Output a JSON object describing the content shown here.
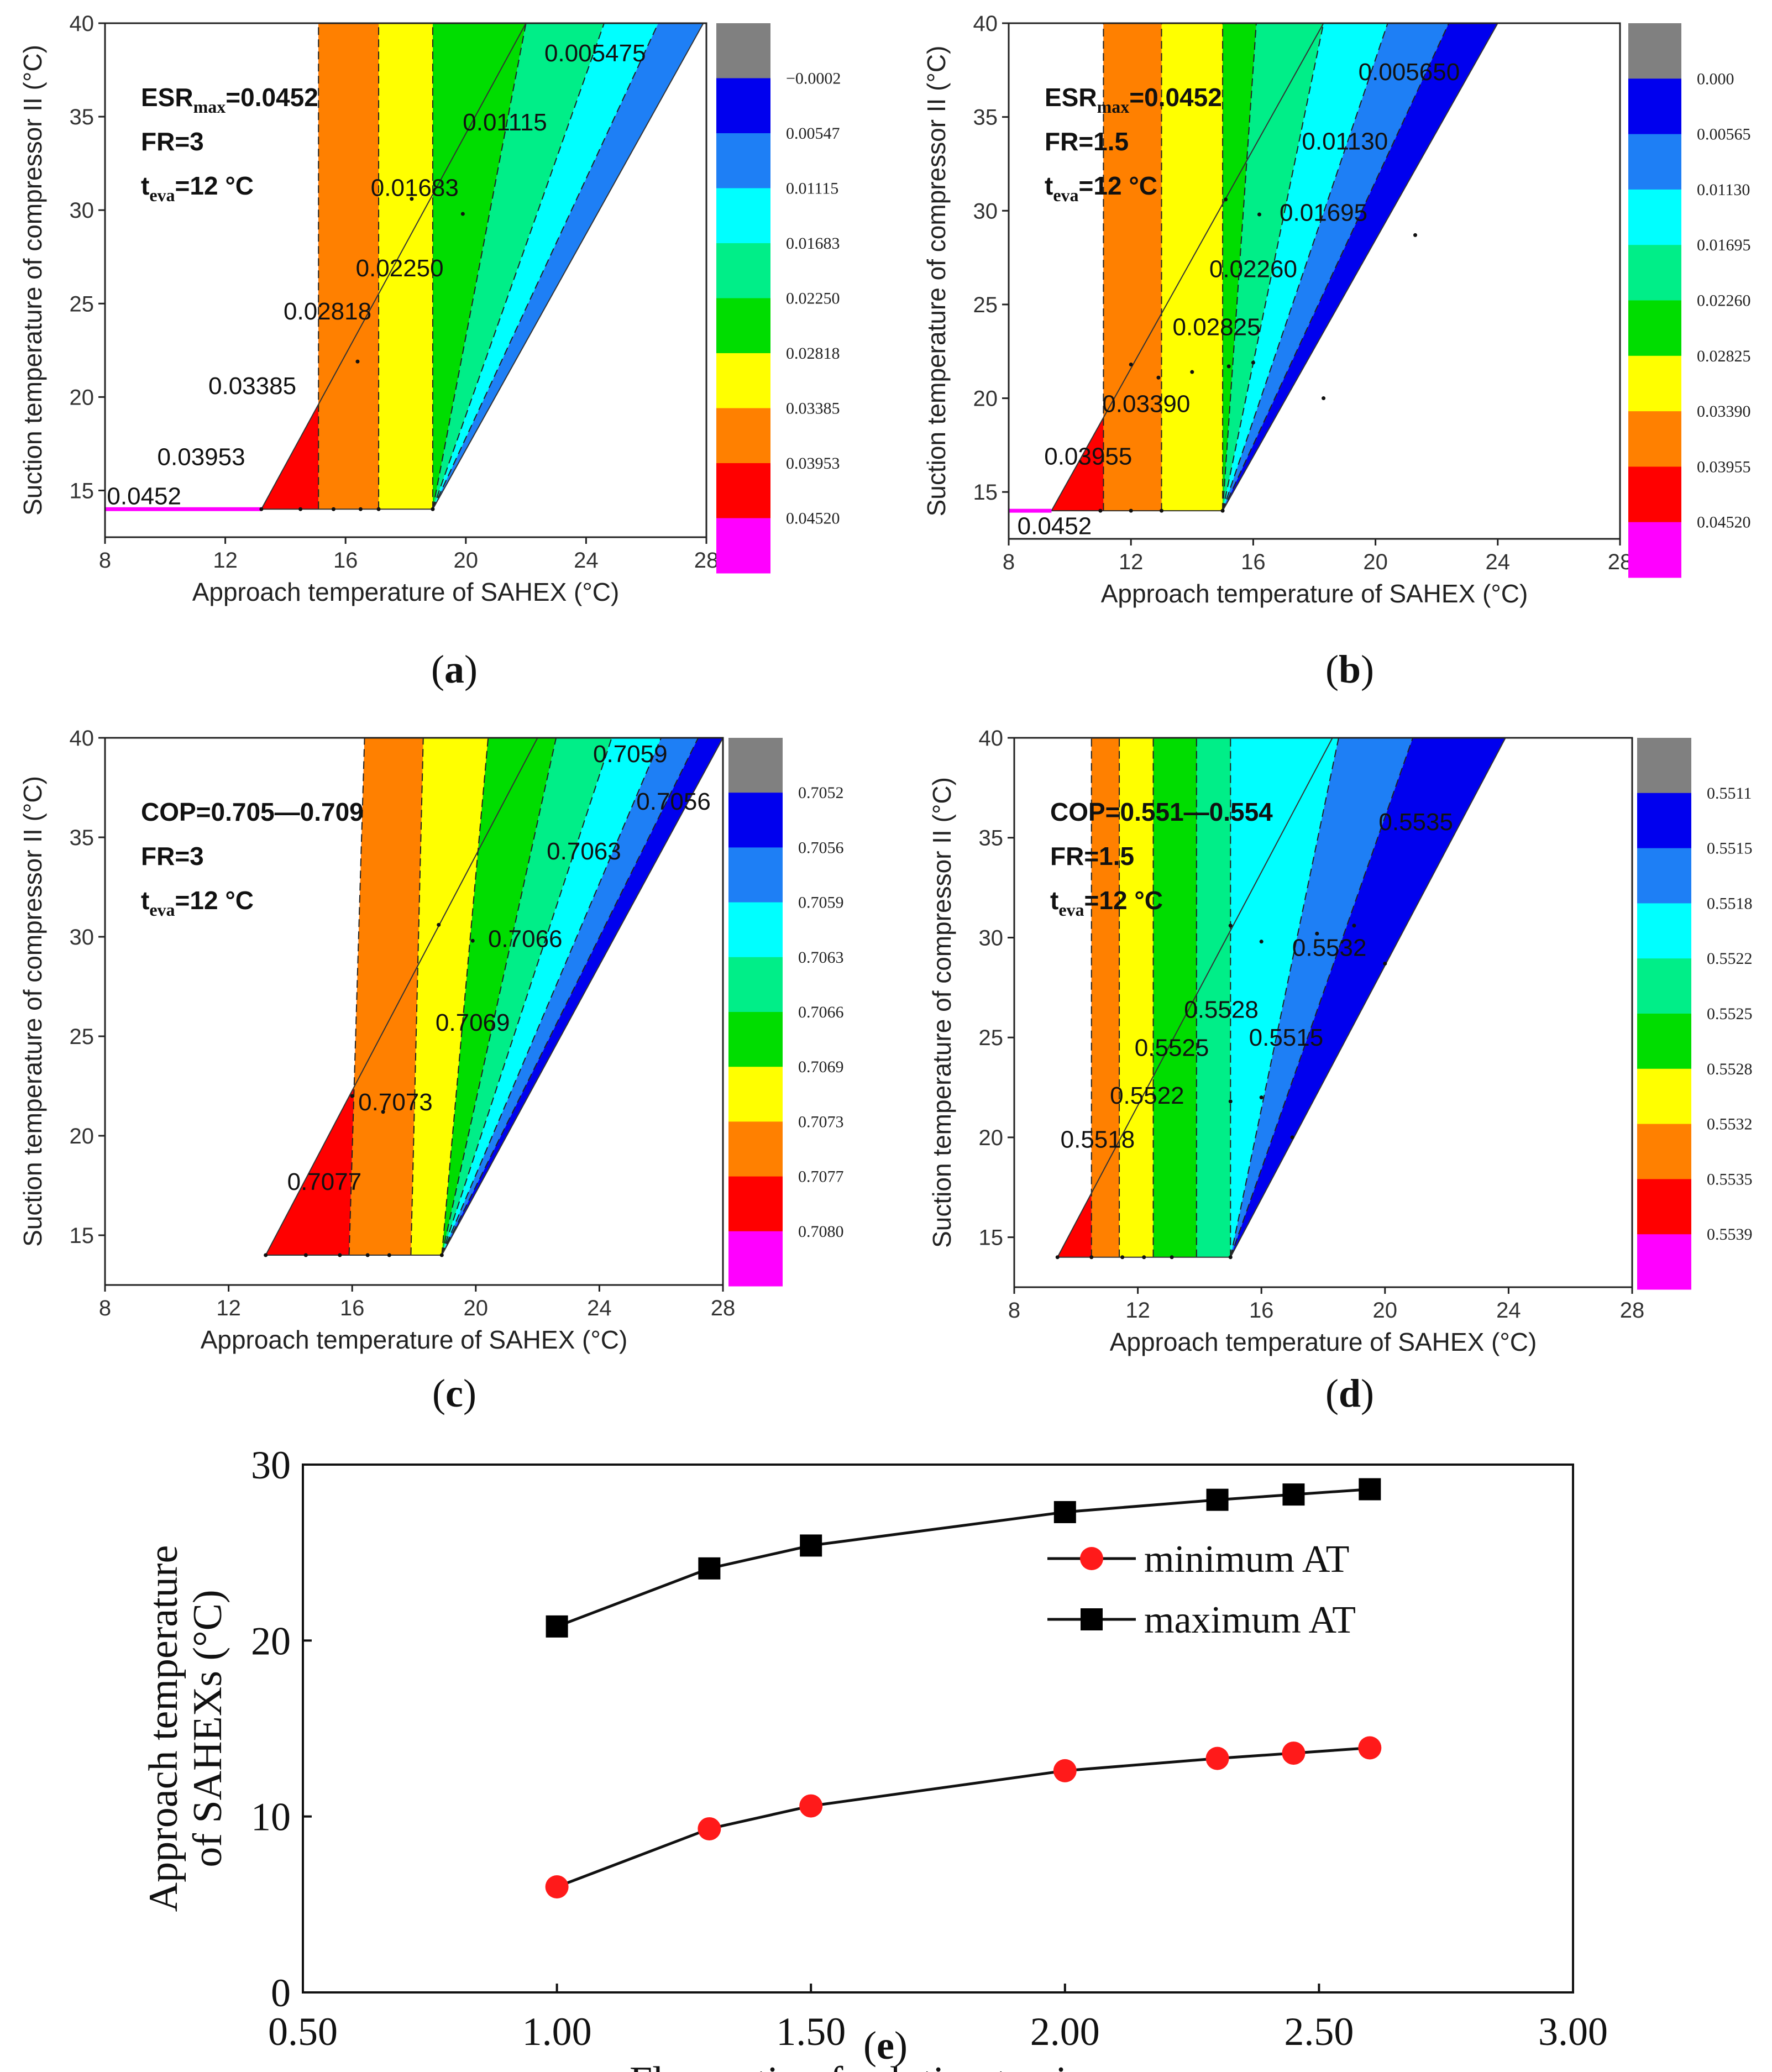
{
  "chart_data": [
    {
      "panel": "a",
      "type": "contour",
      "caption": "(a)",
      "xlabel": "Approach temperature of SAHEX (°C)",
      "ylabel": "Suction temperature of compressor II (°C)",
      "xlim": [
        8,
        28
      ],
      "ylim": [
        12.5,
        40
      ],
      "xticks": [
        8,
        12,
        16,
        20,
        24,
        28
      ],
      "yticks": [
        15,
        20,
        25,
        30,
        35,
        40
      ],
      "xtick_labels": [
        "8",
        "12",
        "16",
        "20",
        "24",
        "28"
      ],
      "ytick_labels": [
        "15",
        "20",
        "25",
        "30",
        "35",
        "40"
      ],
      "info": {
        "line1_main": "ESR",
        "line1_sub": "max",
        "line1_rest": "=0.0452",
        "line2": "FR=3",
        "line3_main": "t",
        "line3_sub": "eva",
        "line3_rest": "=12 °C"
      },
      "region": {
        "bottom": [
          13.2,
          18.9
        ],
        "top": [
          22.0,
          27.9
        ],
        "y_bottom": 14,
        "y_top": 40
      },
      "band_boundaries": [
        {
          "bottom": 15.1,
          "top": 15.1
        },
        {
          "bottom": 17.1,
          "top": 17.1
        },
        {
          "bottom": 18.9,
          "top": 18.9
        },
        {
          "bottom": 18.9,
          "top": 22.0
        },
        {
          "bottom": 18.9,
          "top": 24.6
        },
        {
          "bottom": 18.9,
          "top": 26.4
        }
      ],
      "colorbar_labels": [
        "−0.0002",
        "0.00547",
        "0.01115",
        "0.01683",
        "0.02250",
        "0.02818",
        "0.03385",
        "0.03953",
        "0.04520"
      ],
      "contour_labels": [
        {
          "text": "0.005475",
          "x": 24.3,
          "y": 38.4
        },
        {
          "text": "0.01115",
          "x": 21.3,
          "y": 34.7
        },
        {
          "text": "0.01683",
          "x": 18.3,
          "y": 31.2
        },
        {
          "text": "0.02250",
          "x": 17.8,
          "y": 26.9
        },
        {
          "text": "0.02818",
          "x": 15.4,
          "y": 24.6
        },
        {
          "text": "0.03385",
          "x": 12.9,
          "y": 20.6
        },
        {
          "text": "0.03953",
          "x": 11.2,
          "y": 16.8
        },
        {
          "text": "0.0452",
          "x": 9.3,
          "y": 14.7
        }
      ],
      "pink_segment": [
        8,
        13.2
      ],
      "points": [
        [
          13.2,
          14
        ],
        [
          14.5,
          14
        ],
        [
          15.6,
          14
        ],
        [
          16.5,
          14
        ],
        [
          17.1,
          14
        ],
        [
          18.9,
          14
        ],
        [
          16.4,
          21.9
        ],
        [
          18.2,
          30.6
        ],
        [
          19.9,
          29.8
        ]
      ]
    },
    {
      "panel": "b",
      "type": "contour",
      "caption": "(b)",
      "xlabel": "Approach temperature of SAHEX (°C)",
      "ylabel": "Suction temperature of compressor II (°C)",
      "xlim": [
        8,
        28
      ],
      "ylim": [
        12.5,
        40
      ],
      "xticks": [
        8,
        12,
        16,
        20,
        24,
        28
      ],
      "yticks": [
        15,
        20,
        25,
        30,
        35,
        40
      ],
      "xtick_labels": [
        "8",
        "12",
        "16",
        "20",
        "24",
        "28"
      ],
      "ytick_labels": [
        "15",
        "20",
        "25",
        "30",
        "35",
        "40"
      ],
      "info": {
        "line1_main": "ESR",
        "line1_sub": "max",
        "line1_rest": "=0.0452",
        "line2": "FR=1.5",
        "line3_main": "t",
        "line3_sub": "eva",
        "line3_rest": "=12 °C"
      },
      "region": {
        "bottom": [
          9.4,
          15.0
        ],
        "top": [
          18.3,
          24.0
        ],
        "y_bottom": 14,
        "y_top": 40
      },
      "band_boundaries": [
        {
          "bottom": 11.1,
          "top": 11.1
        },
        {
          "bottom": 13.0,
          "top": 13.0
        },
        {
          "bottom": 15.0,
          "top": 15.0
        },
        {
          "bottom": 15.0,
          "top": 16.1
        },
        {
          "bottom": 15.0,
          "top": 18.3
        },
        {
          "bottom": 15.0,
          "top": 20.4
        },
        {
          "bottom": 15.0,
          "top": 22.4
        }
      ],
      "colorbar_labels": [
        "0.000",
        "0.00565",
        "0.01130",
        "0.01695",
        "0.02260",
        "0.02825",
        "0.03390",
        "0.03955",
        "0.04520"
      ],
      "contour_labels": [
        {
          "text": "0.005650",
          "x": 21.1,
          "y": 37.4
        },
        {
          "text": "0.01130",
          "x": 19.0,
          "y": 33.7
        },
        {
          "text": "0.01695",
          "x": 18.3,
          "y": 29.9
        },
        {
          "text": "0.02260",
          "x": 16.0,
          "y": 26.9
        },
        {
          "text": "0.02825",
          "x": 14.8,
          "y": 23.8
        },
        {
          "text": "0.03390",
          "x": 12.5,
          "y": 19.7
        },
        {
          "text": "0.03955",
          "x": 10.6,
          "y": 16.9
        },
        {
          "text": "0.0452",
          "x": 9.5,
          "y": 13.2
        }
      ],
      "pink_segment": [
        8,
        9.4
      ],
      "points": [
        [
          11.0,
          14
        ],
        [
          12.0,
          14
        ],
        [
          13.0,
          14
        ],
        [
          15.0,
          14
        ],
        [
          12.0,
          21.8
        ],
        [
          12.9,
          21.1
        ],
        [
          14.0,
          21.4
        ],
        [
          15.2,
          21.7
        ],
        [
          16.0,
          21.9
        ],
        [
          16.2,
          29.8
        ],
        [
          18.3,
          20.0
        ],
        [
          21.3,
          28.7
        ],
        [
          15.1,
          30.6
        ]
      ]
    },
    {
      "panel": "c",
      "type": "contour",
      "caption": "(c)",
      "xlabel": "Approach temperature of SAHEX (°C)",
      "ylabel": "Suction temperature of compressor II (°C)",
      "xlim": [
        8,
        28
      ],
      "ylim": [
        12.5,
        40
      ],
      "xticks": [
        8,
        12,
        16,
        20,
        24,
        28
      ],
      "yticks": [
        15,
        20,
        25,
        30,
        35,
        40
      ],
      "xtick_labels": [
        "8",
        "12",
        "16",
        "20",
        "24",
        "28"
      ],
      "ytick_labels": [
        "15",
        "20",
        "25",
        "30",
        "35",
        "40"
      ],
      "info": {
        "line1_main": "COP=0.705—0.709",
        "line1_sub": "",
        "line1_rest": "",
        "line2": "FR=3",
        "line3_main": "t",
        "line3_sub": "eva",
        "line3_rest": "=12 °C"
      },
      "region": {
        "bottom": [
          13.2,
          18.9
        ],
        "top": [
          22.0,
          28.0
        ],
        "y_bottom": 14,
        "y_top": 40
      },
      "band_boundaries": [
        {
          "bottom": 15.9,
          "top": 16.4
        },
        {
          "bottom": 17.9,
          "top": 18.3
        },
        {
          "bottom": 18.9,
          "top": 20.4
        },
        {
          "bottom": 18.9,
          "top": 22.6
        },
        {
          "bottom": 18.9,
          "top": 24.4
        },
        {
          "bottom": 18.9,
          "top": 26.0
        },
        {
          "bottom": 18.9,
          "top": 27.2
        }
      ],
      "colorbar_labels": [
        "0.7052",
        "0.7056",
        "0.7059",
        "0.7063",
        "0.7066",
        "0.7069",
        "0.7073",
        "0.7077",
        "0.7080"
      ],
      "contour_labels": [
        {
          "text": "0.7059",
          "x": 25.0,
          "y": 39.2
        },
        {
          "text": "0.7056",
          "x": 26.4,
          "y": 36.8
        },
        {
          "text": "0.7063",
          "x": 23.5,
          "y": 34.3
        },
        {
          "text": "0.7066",
          "x": 21.6,
          "y": 29.9
        },
        {
          "text": "0.7069",
          "x": 19.9,
          "y": 25.7
        },
        {
          "text": "0.7073",
          "x": 17.4,
          "y": 21.7
        },
        {
          "text": "0.7077",
          "x": 15.1,
          "y": 17.7
        }
      ],
      "pink_segment": null,
      "points": [
        [
          13.2,
          14
        ],
        [
          14.5,
          14
        ],
        [
          15.6,
          14
        ],
        [
          16.5,
          14
        ],
        [
          17.2,
          14
        ],
        [
          18.9,
          14
        ],
        [
          16.0,
          22.0
        ],
        [
          17.0,
          21.2
        ],
        [
          18.8,
          30.6
        ],
        [
          19.9,
          29.8
        ]
      ]
    },
    {
      "panel": "d",
      "type": "contour",
      "caption": "(d)",
      "xlabel": "Approach temperature of SAHEX (°C)",
      "ylabel": "Suction temperature of compressor II (°C)",
      "xlim": [
        8,
        28
      ],
      "ylim": [
        12.5,
        40
      ],
      "xticks": [
        8,
        12,
        16,
        20,
        24,
        28
      ],
      "yticks": [
        15,
        20,
        25,
        30,
        35,
        40
      ],
      "xtick_labels": [
        "8",
        "12",
        "16",
        "20",
        "24",
        "28"
      ],
      "ytick_labels": [
        "15",
        "20",
        "25",
        "30",
        "35",
        "40"
      ],
      "info": {
        "line1_main": "COP=0.551—0.554",
        "line1_sub": "",
        "line1_rest": "",
        "line2": "FR=1.5",
        "line3_main": "t",
        "line3_sub": "eva",
        "line3_rest": "=12 °C"
      },
      "region": {
        "bottom": [
          9.4,
          15.0
        ],
        "top": [
          18.3,
          23.9
        ],
        "y_bottom": 14,
        "y_top": 40
      },
      "band_boundaries": [
        {
          "bottom": 10.5,
          "top": 10.5
        },
        {
          "bottom": 11.4,
          "top": 11.4
        },
        {
          "bottom": 12.5,
          "top": 12.5
        },
        {
          "bottom": 13.9,
          "top": 13.9
        },
        {
          "bottom": 15.0,
          "top": 15.0
        },
        {
          "bottom": 15.0,
          "top": 18.5
        },
        {
          "bottom": 15.0,
          "top": 20.9
        }
      ],
      "colorbar_labels": [
        "0.5511",
        "0.5515",
        "0.5518",
        "0.5522",
        "0.5525",
        "0.5528",
        "0.5532",
        "0.5535",
        "0.5539"
      ],
      "contour_labels": [
        {
          "text": "0.5535",
          "x": 21.0,
          "y": 35.8
        },
        {
          "text": "0.5532",
          "x": 18.2,
          "y": 29.5
        },
        {
          "text": "0.5528",
          "x": 14.7,
          "y": 26.4
        },
        {
          "text": "0.5515",
          "x": 16.8,
          "y": 25.0
        },
        {
          "text": "0.5525",
          "x": 13.1,
          "y": 24.5
        },
        {
          "text": "0.5522",
          "x": 12.3,
          "y": 22.1
        },
        {
          "text": "0.5518",
          "x": 10.7,
          "y": 19.9
        }
      ],
      "pink_segment": null,
      "points": [
        [
          9.4,
          14
        ],
        [
          10.5,
          14
        ],
        [
          11.5,
          14
        ],
        [
          12.2,
          14
        ],
        [
          13.1,
          14
        ],
        [
          15.0,
          14
        ],
        [
          15.0,
          21.8
        ],
        [
          16.0,
          22.0
        ],
        [
          17.0,
          20.0
        ],
        [
          16.0,
          29.8
        ],
        [
          17.8,
          30.2
        ],
        [
          19.0,
          30.6
        ],
        [
          20.0,
          28.7
        ],
        [
          15.0,
          30.6
        ]
      ]
    },
    {
      "panel": "e",
      "type": "line",
      "caption": "(e)",
      "xlabel": "Flow ratio of solution to air",
      "ylabel_line1": "Approach temperature",
      "ylabel_line2": "of SAHEXs (°C)",
      "xlim": [
        0.5,
        3.0
      ],
      "ylim": [
        0,
        30
      ],
      "xticks": [
        "0.50",
        "1.00",
        "1.50",
        "2.00",
        "2.50",
        "3.00"
      ],
      "yticks": [
        "0",
        "10",
        "20",
        "30"
      ],
      "x": [
        1.0,
        1.3,
        1.5,
        2.0,
        2.3,
        2.45,
        2.6
      ],
      "series": [
        {
          "name": "minimum AT",
          "marker": "circle",
          "color": "#ff1a1a",
          "values": [
            6.0,
            9.3,
            10.6,
            12.6,
            13.3,
            13.6,
            13.9
          ]
        },
        {
          "name": "maximum AT",
          "marker": "square",
          "color": "#000000",
          "values": [
            20.8,
            24.1,
            25.4,
            27.3,
            28.0,
            28.3,
            28.6
          ]
        }
      ]
    }
  ],
  "colormap": [
    "#808080",
    "#0000ee",
    "#1e7ff5",
    "#00ffff",
    "#00ee88",
    "#00dd00",
    "#ffff00",
    "#ff8000",
    "#ff0000",
    "#ff00ff"
  ]
}
